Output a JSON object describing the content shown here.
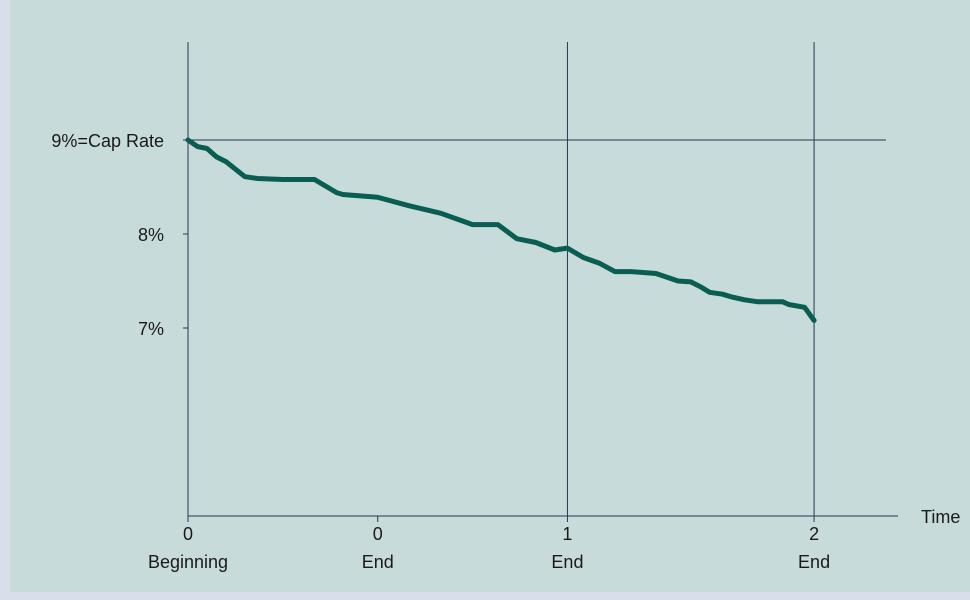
{
  "chart_data": {
    "type": "line",
    "title": "",
    "xlabel": "Time",
    "ylabel": "",
    "ylim": [
      5,
      10
    ],
    "y_ticks": [
      {
        "value": 9,
        "label": "9%=Cap Rate"
      },
      {
        "value": 8,
        "label": "8%"
      },
      {
        "value": 7,
        "label": "7%"
      }
    ],
    "x_ticks": [
      {
        "value": 0.0,
        "number": "0",
        "word": "Beginning"
      },
      {
        "value": 0.6,
        "number": "0",
        "word": "End"
      },
      {
        "value": 1.2,
        "number": "1",
        "word": "End"
      },
      {
        "value": 1.98,
        "number": "2",
        "word": "End"
      }
    ],
    "vertical_lines_at": [
      0.0,
      1.2,
      1.98
    ],
    "horizontal_lines_at": [
      9
    ],
    "series": [
      {
        "name": "",
        "color": "#0a5d52",
        "x": [
          0.0,
          0.03,
          0.06,
          0.09,
          0.12,
          0.18,
          0.22,
          0.3,
          0.4,
          0.45,
          0.47,
          0.49,
          0.53,
          0.6,
          0.7,
          0.8,
          0.9,
          0.98,
          1.04,
          1.1,
          1.16,
          1.2,
          1.25,
          1.3,
          1.35,
          1.4,
          1.48,
          1.55,
          1.59,
          1.62,
          1.65,
          1.69,
          1.72,
          1.76,
          1.8,
          1.88,
          1.9,
          1.95,
          1.98
        ],
        "y": [
          9.0,
          8.93,
          8.91,
          8.82,
          8.77,
          8.61,
          8.59,
          8.58,
          8.58,
          8.48,
          8.44,
          8.42,
          8.41,
          8.39,
          8.3,
          8.22,
          8.1,
          8.1,
          7.95,
          7.91,
          7.83,
          7.85,
          7.75,
          7.69,
          7.6,
          7.6,
          7.58,
          7.5,
          7.49,
          7.44,
          7.38,
          7.36,
          7.33,
          7.3,
          7.28,
          7.28,
          7.25,
          7.22,
          7.08
        ]
      }
    ]
  }
}
